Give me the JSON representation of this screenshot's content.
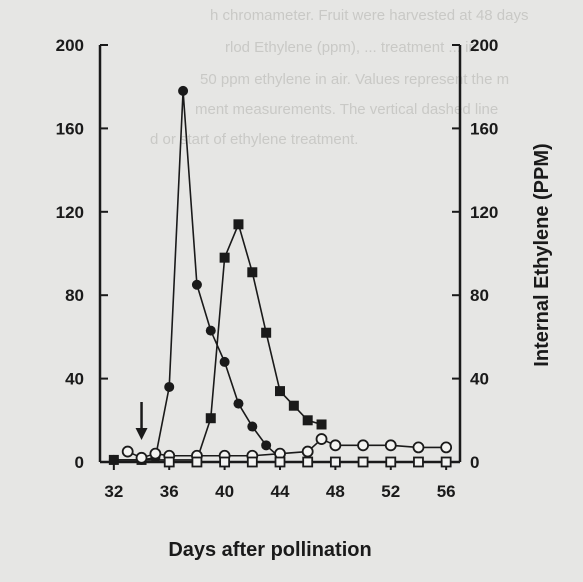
{
  "background_text": [
    "h chromameter. Fruit were harvested at 48 days",
    "rlod Ethylene (ppm), ... treatment ... in",
    "50 ppm ethylene in air. Values represent the m",
    "ment measurements. The vertical dashed line",
    "d or start of ethylene treatment."
  ],
  "chart_data": {
    "type": "line",
    "title": "",
    "xlabel": "Days after pollination",
    "ylabel": "",
    "y2label": "Internal Ethylene (PPM)",
    "xlim": [
      31,
      57
    ],
    "ylim": [
      0,
      200
    ],
    "xticks": [
      32,
      36,
      40,
      44,
      48,
      52,
      56
    ],
    "yticks": [
      0,
      40,
      80,
      120,
      160,
      200
    ],
    "grid": false,
    "legend": "none",
    "annotation": {
      "type": "arrow",
      "x": 34,
      "meaning": "start of ethylene treatment"
    },
    "series": [
      {
        "marker": "filled-circle",
        "x": [
          32,
          34,
          35,
          36,
          37,
          38,
          39,
          40,
          41,
          42,
          43,
          44
        ],
        "y": [
          1,
          1,
          2,
          36,
          178,
          85,
          63,
          48,
          28,
          17,
          8,
          2
        ]
      },
      {
        "marker": "filled-square",
        "x": [
          32,
          34,
          36,
          38,
          39,
          40,
          41,
          42,
          43,
          44,
          45,
          46,
          47
        ],
        "y": [
          1,
          1,
          1,
          1,
          21,
          98,
          114,
          91,
          62,
          34,
          27,
          20,
          18
        ]
      },
      {
        "marker": "open-circle",
        "x": [
          33,
          34,
          35,
          36,
          38,
          40,
          42,
          44,
          46,
          47,
          48,
          50,
          52,
          54,
          56
        ],
        "y": [
          5,
          2,
          4,
          3,
          3,
          3,
          3,
          4,
          5,
          11,
          8,
          8,
          8,
          7,
          7
        ]
      },
      {
        "marker": "open-square",
        "x": [
          36,
          38,
          40,
          42,
          44,
          46,
          48,
          50,
          52,
          54,
          56
        ],
        "y": [
          0,
          0,
          0,
          0,
          0,
          0,
          0,
          0,
          0,
          0,
          0
        ]
      }
    ]
  }
}
